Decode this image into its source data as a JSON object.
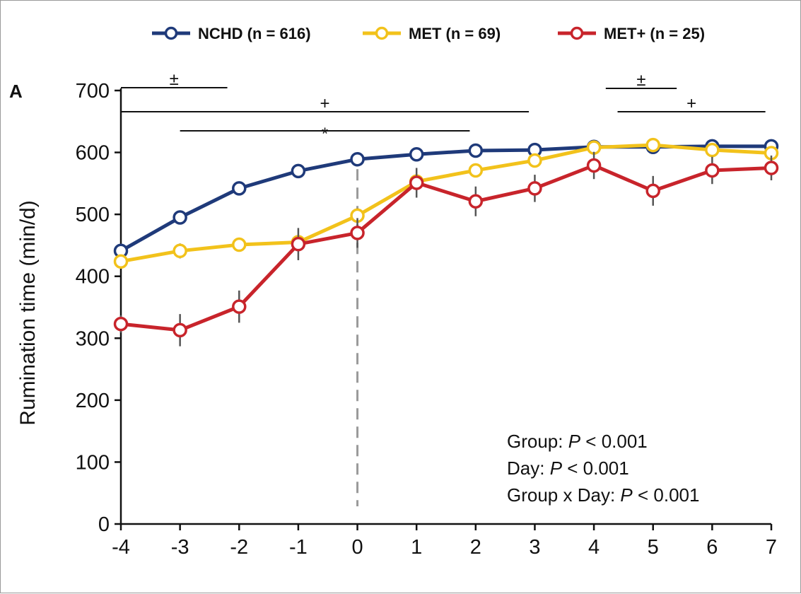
{
  "chart_data": {
    "type": "line",
    "panel_label": "A",
    "xlabel": "",
    "ylabel": "Rumination time (min/d)",
    "x": [
      -4,
      -3,
      -2,
      -1,
      0,
      1,
      2,
      3,
      4,
      5,
      6,
      7
    ],
    "xlim": [
      -4,
      7
    ],
    "ylim": [
      0,
      700
    ],
    "yticks": [
      0,
      100,
      200,
      300,
      400,
      500,
      600,
      700
    ],
    "grid": false,
    "legend_position": "top",
    "reference_line_x": 0,
    "series": [
      {
        "name": "NCHD (n = 616)",
        "color": "#1f3a7a",
        "values": [
          441,
          495,
          542,
          570,
          589,
          597,
          603,
          604,
          609,
          609,
          610,
          610
        ],
        "errors": [
          4,
          3,
          3,
          3,
          3,
          3,
          3,
          3,
          3,
          3,
          3,
          3
        ]
      },
      {
        "name": "MET (n = 69)",
        "color": "#f2c21b",
        "values": [
          424,
          441,
          451,
          455,
          498,
          553,
          571,
          587,
          608,
          612,
          604,
          599
        ],
        "errors": [
          8,
          12,
          10,
          10,
          12,
          12,
          10,
          10,
          8,
          10,
          10,
          8
        ]
      },
      {
        "name": "MET+ (n = 25)",
        "color": "#c8242b",
        "values": [
          323,
          313,
          351,
          452,
          470,
          551,
          521,
          542,
          579,
          538,
          571,
          575
        ],
        "errors": [
          14,
          26,
          26,
          26,
          24,
          24,
          24,
          22,
          22,
          24,
          22,
          20
        ]
      }
    ],
    "significance_brackets": [
      {
        "symbol": "±",
        "x_start": -4,
        "x_end": -2.2
      },
      {
        "symbol": "+",
        "x_start": -4,
        "x_end": 2.9
      },
      {
        "symbol": "*",
        "x_start": -3,
        "x_end": 1.9
      },
      {
        "symbol": "±",
        "x_start": 4.2,
        "x_end": 5.4
      },
      {
        "symbol": "+",
        "x_start": 4.4,
        "x_end": 6.9
      }
    ],
    "stats_annotation": [
      {
        "prefix": "Group: ",
        "p": "P",
        "suffix": " < 0.001"
      },
      {
        "prefix": "Day: ",
        "p": "P",
        "suffix": " < 0.001"
      },
      {
        "prefix": "Group x Day: ",
        "p": "P",
        "suffix": " < 0.001"
      }
    ]
  }
}
